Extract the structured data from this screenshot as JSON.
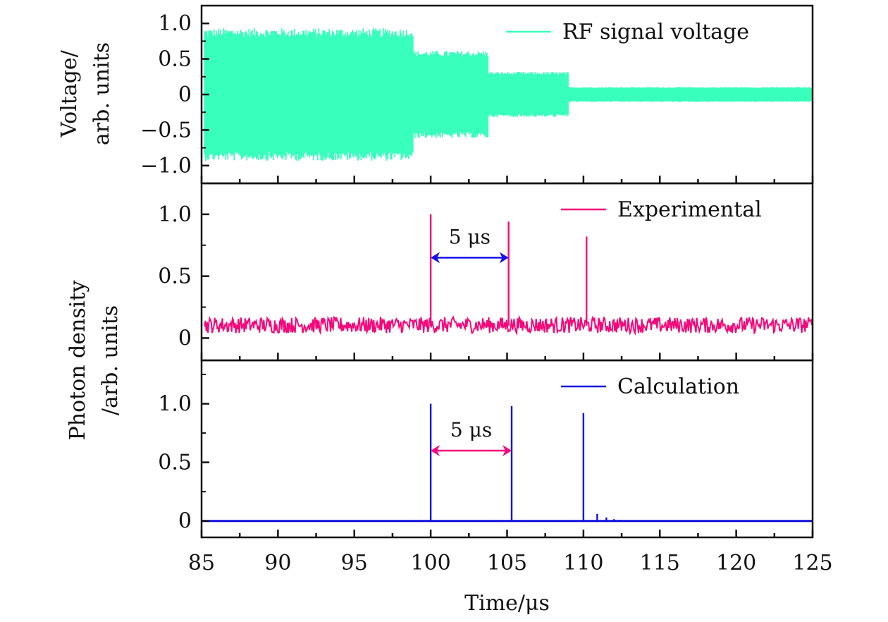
{
  "chart_data": {
    "type": "line",
    "layout": "3 vertically stacked panels sharing x-axis",
    "xlabel": "Time/μs",
    "xlim": [
      85,
      125
    ],
    "xticks": [
      85,
      90,
      95,
      100,
      105,
      110,
      115,
      120,
      125
    ],
    "xtick_labels": [
      "85",
      "90",
      "95",
      "100",
      "105",
      "110",
      "115",
      "120",
      "125"
    ],
    "x_minor_step": 2.5,
    "shared_ylabel": {
      "line1": "Photon density",
      "line2": "/arb. units"
    },
    "panels": [
      {
        "id": "rf",
        "ylabel_line1": "Voltage/",
        "ylabel_line2": "arb. units",
        "ylim": [
          -1.25,
          1.25
        ],
        "yticks": [
          -1.0,
          -0.5,
          0,
          0.5,
          1.0
        ],
        "ytick_labels": [
          "−1.0",
          "−0.5",
          "0",
          "0.5",
          "1.0"
        ],
        "legend": {
          "label": "RF signal voltage",
          "color": "#38FFBC",
          "position": "top-right"
        },
        "series": {
          "name": "RF signal voltage",
          "kind": "oscillating envelope",
          "color": "#38FFBC",
          "segments": [
            {
              "t_start": 85.2,
              "t_end": 98.9,
              "amplitude": 0.88,
              "peak_max": 1.0
            },
            {
              "t_start": 98.9,
              "t_end": 103.8,
              "amplitude": 0.58
            },
            {
              "t_start": 103.8,
              "t_end": 109.0,
              "amplitude": 0.3
            },
            {
              "t_start": 109.0,
              "t_end": 125.0,
              "amplitude": 0.1
            }
          ]
        }
      },
      {
        "id": "experimental",
        "ylim": [
          -0.18,
          1.25
        ],
        "yticks": [
          0,
          0.5,
          1.0
        ],
        "ytick_labels": [
          "0",
          "0.5",
          "1.0"
        ],
        "y_minor_step": 0.25,
        "legend": {
          "label": "Experimental",
          "color": "#F5087A",
          "position": "top-right"
        },
        "series": {
          "name": "Experimental",
          "color": "#F5087A",
          "baseline_noise": {
            "mean": 0.1,
            "low": 0.04,
            "high": 0.17
          },
          "peaks": [
            {
              "t": 100.0,
              "value": 1.0
            },
            {
              "t": 105.1,
              "value": 0.94
            },
            {
              "t": 110.2,
              "value": 0.82
            }
          ]
        },
        "annotation": {
          "text": "5 μs",
          "from": 100.0,
          "to": 105.1,
          "y": 0.65,
          "color": "#1010E8"
        }
      },
      {
        "id": "calculation",
        "ylim": [
          -0.14,
          1.37
        ],
        "yticks": [
          0,
          0.5,
          1.0
        ],
        "ytick_labels": [
          "0",
          "0.5",
          "1.0"
        ],
        "y_minor_step": 0.25,
        "legend": {
          "label": "Calculation",
          "color": "#1010E0",
          "position": "top-right"
        },
        "series": {
          "name": "Calculation",
          "color": "#1010E0",
          "baseline": 0,
          "peaks": [
            {
              "t": 100.0,
              "value": 1.0
            },
            {
              "t": 105.3,
              "value": 0.98
            },
            {
              "t": 110.0,
              "value": 0.92
            },
            {
              "t": 110.9,
              "value": 0.06
            },
            {
              "t": 111.5,
              "value": 0.03
            },
            {
              "t": 112.0,
              "value": 0.015
            },
            {
              "t": 112.4,
              "value": 0.01
            },
            {
              "t": 112.8,
              "value": 0.006
            }
          ]
        },
        "annotation": {
          "text": "5 μs",
          "from": 100.0,
          "to": 105.3,
          "y": 0.6,
          "color": "#F5087A"
        }
      }
    ]
  }
}
